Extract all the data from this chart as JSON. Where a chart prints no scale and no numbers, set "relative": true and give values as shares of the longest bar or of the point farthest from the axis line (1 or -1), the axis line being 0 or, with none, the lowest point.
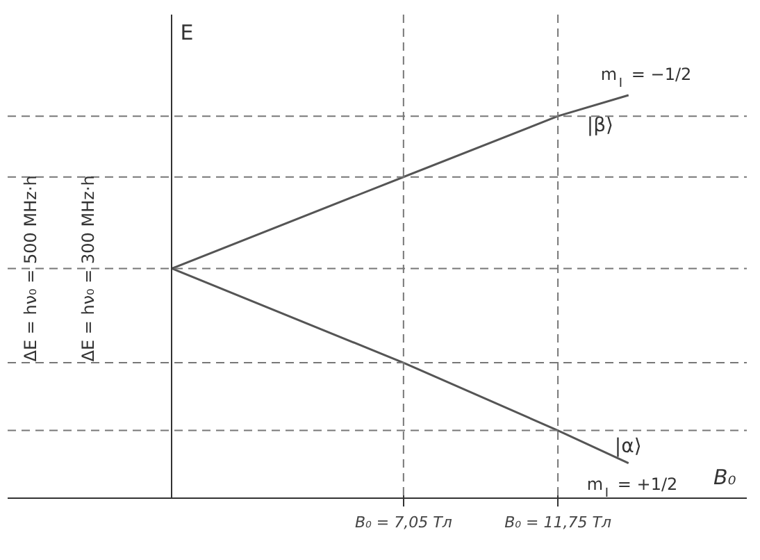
{
  "chart_data": {
    "type": "line",
    "relative": true,
    "ylabel": "E",
    "xlabel": "B₀",
    "x": [
      0,
      7.05,
      11.75,
      13.9
    ],
    "series": [
      {
        "name": "|β⟩",
        "color": "#555555",
        "values": [
          0.57,
          0.797,
          0.948,
          1
        ]
      },
      {
        "name": "|α⟩",
        "color": "#555555",
        "values": [
          0.57,
          0.336,
          0.168,
          0.087
        ]
      }
    ],
    "xlim": [
      -5,
      17.5
    ],
    "xticks": [
      {
        "value": 7.05,
        "label": "B₀ = 7,05 Тл"
      },
      {
        "value": 11.75,
        "label": "B₀ = 11,75 Тл"
      }
    ],
    "ref_lines": [
      {
        "axis": "x",
        "value": 7.05,
        "line_style": "dashed"
      },
      {
        "axis": "x",
        "value": 11.75,
        "line_style": "dashed"
      },
      {
        "axis": "y",
        "value": 0.948,
        "line_style": "dashed"
      },
      {
        "axis": "y",
        "value": 0.797,
        "line_style": "dashed"
      },
      {
        "axis": "y",
        "value": 0.57,
        "line_style": "dashed"
      },
      {
        "axis": "y",
        "value": 0.336,
        "line_style": "dashed"
      },
      {
        "axis": "y",
        "value": 0.168,
        "line_style": "dashed"
      }
    ],
    "annotations": [
      {
        "text": "m$_{I}$ = −1/2",
        "x": 13.9,
        "y": 1
      },
      {
        "text": "m$_{I}$ = +1/2",
        "x": 13.9,
        "y": 0.087
      },
      "ΔE = hν₀ = 500 MHz·h",
      "ΔE = hν₀ = 300 MHz·h"
    ],
    "grid": false,
    "marker": "none",
    "line_style": "solid"
  }
}
